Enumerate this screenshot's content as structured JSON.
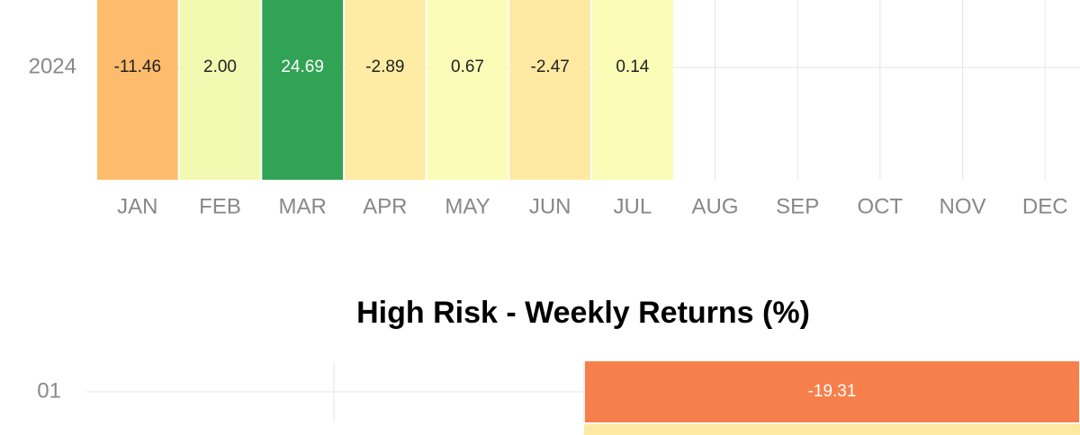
{
  "chart_data": [
    {
      "type": "heatmap",
      "rows": [
        "2024"
      ],
      "columns": [
        "JAN",
        "FEB",
        "MAR",
        "APR",
        "MAY",
        "JUN",
        "JUL",
        "AUG",
        "SEP",
        "OCT",
        "NOV",
        "DEC"
      ],
      "values": [
        [
          -11.46,
          2,
          24.69,
          -2.89,
          0.67,
          -2.47,
          0.14,
          null,
          null,
          null,
          null,
          null
        ]
      ],
      "value_labels": [
        [
          "-11.46",
          "2.00",
          "24.69",
          "-2.89",
          "0.67",
          "-2.47",
          "0.14",
          null,
          null,
          null,
          null,
          null
        ]
      ],
      "colors": [
        [
          "#fdbb6c",
          "#f2f9b1",
          "#31a354",
          "#feeca5",
          "#fbfcb7",
          "#fee9a2",
          "#fafbb6",
          null,
          null,
          null,
          null,
          null
        ]
      ],
      "grid": true
    },
    {
      "type": "heatmap",
      "title": "High Risk - Weekly Returns (%)",
      "rows": [
        "01"
      ],
      "values": [
        [
          null,
          null,
          -19.31
        ]
      ],
      "colors": [
        [
          null,
          null,
          "#f67f4b"
        ]
      ],
      "grid": true
    }
  ]
}
